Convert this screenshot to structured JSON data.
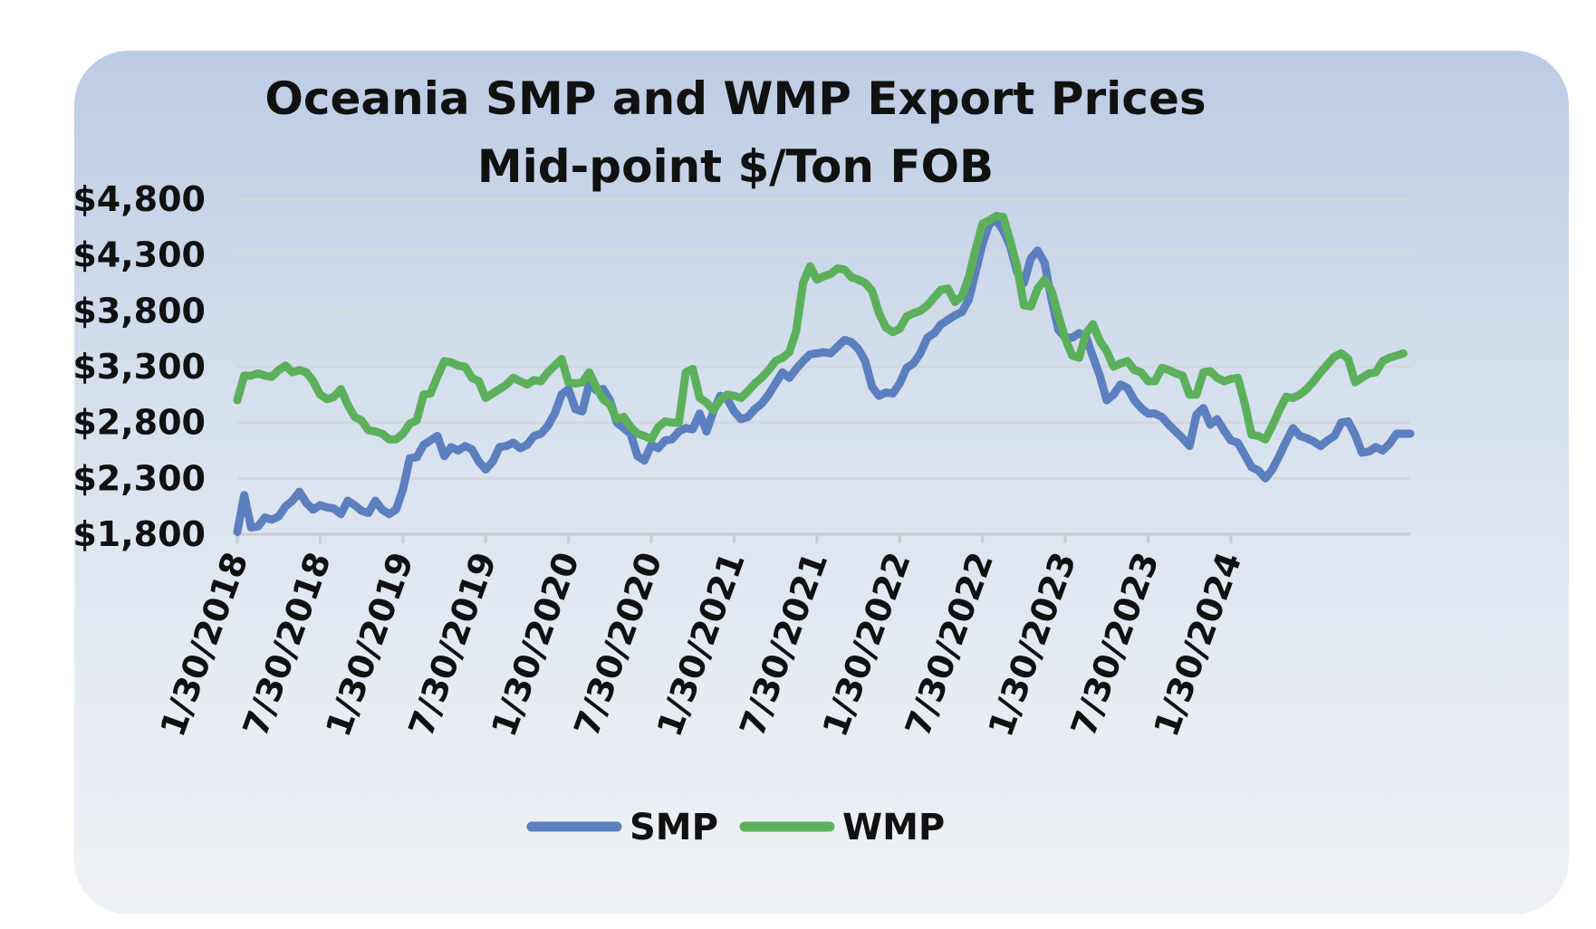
{
  "chart_data": {
    "type": "line",
    "title": "Oceania SMP and WMP Export Prices",
    "subtitle": "Mid-point $/Ton FOB",
    "xlabel": "",
    "ylabel": "",
    "ylim": [
      1800,
      4800
    ],
    "yticks": [
      1800,
      2300,
      2800,
      3300,
      3800,
      4300,
      4800
    ],
    "ytick_labels": [
      "$1,800",
      "$2,300",
      "$2,800",
      "$3,300",
      "$3,800",
      "$4,300",
      "$4,800"
    ],
    "x_start": "1/30/2018",
    "x_step": "half-month",
    "xticks": [
      0,
      12,
      24,
      36,
      48,
      60,
      72,
      84,
      96,
      108,
      120,
      132,
      144
    ],
    "xtick_labels": [
      "1/30/2018",
      "7/30/2018",
      "1/30/2019",
      "7/30/2019",
      "1/30/2020",
      "7/30/2020",
      "1/30/2021",
      "7/30/2021",
      "1/30/2022",
      "7/30/2022",
      "1/30/2023",
      "7/30/2023",
      "1/30/2024"
    ],
    "grid": true,
    "legend_position": "bottom",
    "series": [
      {
        "name": "SMP",
        "color": "#5b7fbf",
        "values": [
          1820,
          2150,
          1860,
          1870,
          1950,
          1930,
          1960,
          2050,
          2100,
          2180,
          2080,
          2020,
          2060,
          2040,
          2030,
          1980,
          2100,
          2060,
          2010,
          1990,
          2100,
          2020,
          1980,
          2020,
          2200,
          2480,
          2490,
          2600,
          2640,
          2680,
          2500,
          2580,
          2550,
          2590,
          2560,
          2450,
          2380,
          2450,
          2580,
          2590,
          2620,
          2570,
          2600,
          2680,
          2700,
          2770,
          2880,
          3050,
          3100,
          2920,
          2900,
          3150,
          3090,
          3100,
          3000,
          2800,
          2750,
          2700,
          2500,
          2460,
          2600,
          2570,
          2640,
          2650,
          2720,
          2750,
          2740,
          2880,
          2720,
          2900,
          3040,
          3010,
          2900,
          2830,
          2850,
          2920,
          2970,
          3050,
          3150,
          3250,
          3200,
          3280,
          3350,
          3410,
          3420,
          3430,
          3420,
          3480,
          3540,
          3520,
          3460,
          3350,
          3120,
          3040,
          3070,
          3060,
          3150,
          3290,
          3330,
          3420,
          3560,
          3600,
          3680,
          3720,
          3760,
          3790,
          3900,
          4150,
          4400,
          4580,
          4610,
          4520,
          4380,
          4150,
          4050,
          4270,
          4340,
          4230,
          3900,
          3630,
          3560,
          3560,
          3600,
          3570,
          3390,
          3220,
          3000,
          3050,
          3140,
          3110,
          3000,
          2930,
          2880,
          2880,
          2850,
          2780,
          2720,
          2660,
          2590,
          2870,
          2930,
          2780,
          2830,
          2730,
          2640,
          2620,
          2510,
          2400,
          2370,
          2300,
          2380,
          2500,
          2630,
          2750,
          2680,
          2660,
          2630,
          2590,
          2640,
          2680,
          2800,
          2810,
          2690,
          2530,
          2540,
          2580,
          2550,
          2610,
          2700,
          2700,
          2700
        ]
      },
      {
        "name": "WMP",
        "color": "#5cb05c",
        "values": [
          3000,
          3220,
          3220,
          3240,
          3220,
          3210,
          3270,
          3310,
          3250,
          3270,
          3250,
          3170,
          3050,
          3010,
          3030,
          3100,
          2960,
          2850,
          2820,
          2730,
          2720,
          2700,
          2650,
          2650,
          2700,
          2790,
          2820,
          3050,
          3060,
          3210,
          3350,
          3340,
          3310,
          3300,
          3200,
          3170,
          3020,
          3060,
          3100,
          3140,
          3200,
          3170,
          3140,
          3180,
          3170,
          3250,
          3310,
          3370,
          3160,
          3150,
          3160,
          3250,
          3120,
          3010,
          2960,
          2830,
          2850,
          2760,
          2700,
          2680,
          2650,
          2760,
          2810,
          2800,
          2800,
          3250,
          3280,
          3020,
          2980,
          2910,
          3000,
          3050,
          3040,
          3020,
          3080,
          3150,
          3200,
          3270,
          3350,
          3380,
          3430,
          3620,
          4050,
          4200,
          4080,
          4110,
          4130,
          4180,
          4170,
          4100,
          4080,
          4050,
          3980,
          3780,
          3650,
          3610,
          3640,
          3750,
          3780,
          3800,
          3850,
          3920,
          3990,
          4000,
          3880,
          3930,
          4100,
          4350,
          4580,
          4610,
          4650,
          4640,
          4430,
          4200,
          3850,
          3840,
          4000,
          4080,
          3980,
          3760,
          3550,
          3400,
          3380,
          3600,
          3680,
          3530,
          3440,
          3300,
          3330,
          3350,
          3270,
          3250,
          3170,
          3170,
          3290,
          3270,
          3240,
          3220,
          3050,
          3050,
          3250,
          3260,
          3200,
          3170,
          3190,
          3200,
          2970,
          2690,
          2680,
          2650,
          2770,
          2910,
          3030,
          3020,
          3050,
          3100,
          3170,
          3250,
          3320,
          3390,
          3420,
          3370,
          3160,
          3200,
          3240,
          3250,
          3350,
          3380,
          3400,
          3420
        ]
      }
    ]
  }
}
